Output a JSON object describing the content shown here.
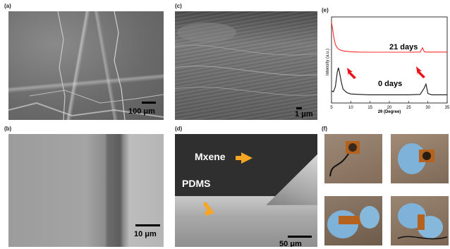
{
  "panels": {
    "a": {
      "label": "(a)",
      "scale": "100 μm"
    },
    "b": {
      "label": "(b)",
      "scale": "10 μm"
    },
    "c": {
      "label": "(c)",
      "scale": "1 μm"
    },
    "d": {
      "label": "(d)",
      "scale": "50 μm",
      "mxene_label": "Mxene",
      "pdms_label": "PDMS"
    },
    "e": {
      "label": "(e)"
    },
    "f": {
      "label": "(f)"
    }
  },
  "colors": {
    "arrow_orange": "#f5a623",
    "red_arrow": "#e8141b",
    "curve_21": "#ff2a2a",
    "curve_0": "#111111"
  },
  "chart_data": {
    "type": "line",
    "xlabel": "2θ (Degree)",
    "ylabel": "Intensity (a.u.)",
    "xlim": [
      5,
      35
    ],
    "xticks": [
      5,
      10,
      15,
      20,
      25,
      30,
      35
    ],
    "grid": false,
    "series": [
      {
        "name": "21 days",
        "x": [
          5,
          5.3,
          5.6,
          6,
          6.5,
          7,
          8,
          9,
          10,
          12,
          15,
          20,
          25,
          28,
          28.6,
          29,
          29.4,
          30,
          32,
          35
        ],
        "y": [
          9.4,
          8.6,
          7.6,
          6.8,
          6.4,
          6.2,
          6.05,
          6.0,
          5.95,
          5.92,
          5.9,
          5.9,
          5.9,
          5.92,
          6.4,
          6.0,
          5.92,
          5.92,
          5.92,
          5.92
        ]
      },
      {
        "name": "0 days",
        "x": [
          5,
          5.5,
          6,
          6.5,
          6.8,
          7.1,
          7.5,
          8,
          9,
          10,
          12,
          15,
          20,
          25,
          28,
          29,
          29.5,
          30,
          31,
          35
        ],
        "y": [
          1.4,
          1.3,
          1.9,
          3.6,
          4.1,
          3.5,
          2.5,
          1.6,
          1.2,
          1.05,
          1.0,
          0.95,
          0.95,
          0.95,
          1.0,
          1.7,
          2.2,
          1.1,
          0.95,
          0.95
        ]
      }
    ],
    "annotations": [
      "21 days",
      "0 days"
    ]
  }
}
